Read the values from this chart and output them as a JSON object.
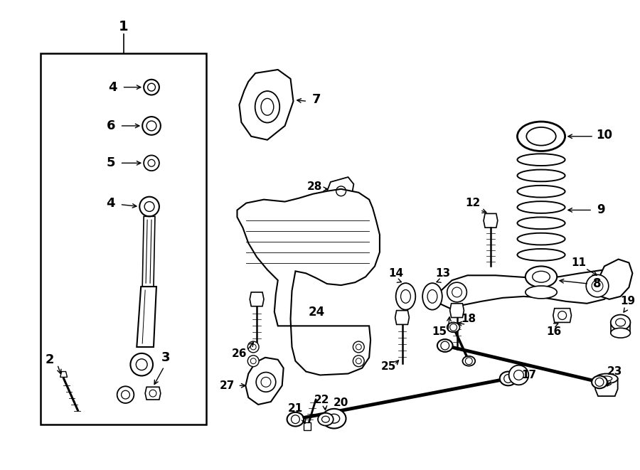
{
  "bg_color": "#ffffff",
  "lc": "#000000",
  "figsize": [
    9.0,
    6.61
  ],
  "dpi": 100
}
